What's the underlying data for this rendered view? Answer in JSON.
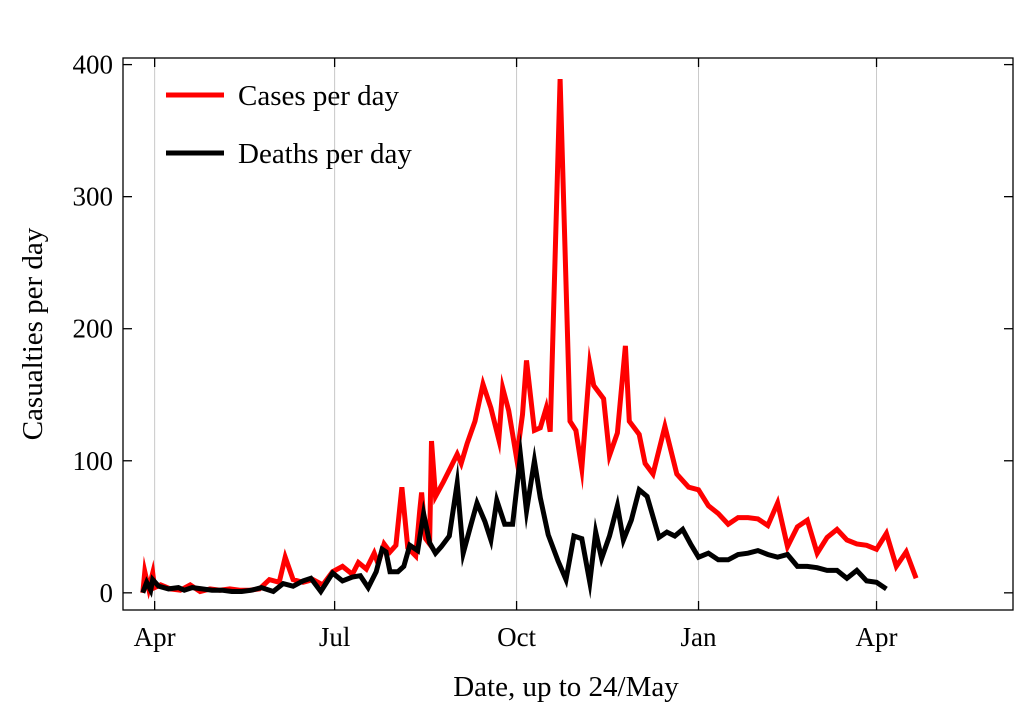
{
  "chart_data": {
    "type": "line",
    "title": "",
    "xlabel": "Date, up to 24/May",
    "ylabel": "Casualties per day",
    "x_ticks": [
      {
        "label": "Apr",
        "day": 1
      },
      {
        "label": "Jul",
        "day": 92
      },
      {
        "label": "Oct",
        "day": 184
      },
      {
        "label": "Jan",
        "day": 276
      },
      {
        "label": "Apr",
        "day": 366
      }
    ],
    "x_domain": [
      -15,
      435
    ],
    "y_ticks": [
      0,
      100,
      200,
      300,
      400
    ],
    "ylim": [
      -13,
      405
    ],
    "grid": "vertical",
    "legend_position": "top-left",
    "series": [
      {
        "name": "Cases per day",
        "color": "#ff0000",
        "points": [
          [
            -5,
            0
          ],
          [
            -4,
            16
          ],
          [
            -2,
            3
          ],
          [
            0,
            15
          ],
          [
            1,
            4
          ],
          [
            4,
            6
          ],
          [
            9,
            3
          ],
          [
            14,
            2
          ],
          [
            19,
            6
          ],
          [
            24,
            1
          ],
          [
            29,
            3
          ],
          [
            34,
            2
          ],
          [
            39,
            3
          ],
          [
            44,
            2
          ],
          [
            49,
            2
          ],
          [
            54,
            3
          ],
          [
            59,
            10
          ],
          [
            64,
            8
          ],
          [
            67,
            27
          ],
          [
            71,
            10
          ],
          [
            76,
            8
          ],
          [
            81,
            10
          ],
          [
            86,
            6
          ],
          [
            91,
            16
          ],
          [
            96,
            20
          ],
          [
            101,
            14
          ],
          [
            104,
            23
          ],
          [
            108,
            18
          ],
          [
            112,
            30
          ],
          [
            114,
            22
          ],
          [
            117,
            37
          ],
          [
            120,
            31
          ],
          [
            123,
            36
          ],
          [
            126,
            80
          ],
          [
            129,
            34
          ],
          [
            133,
            28
          ],
          [
            135,
            62
          ],
          [
            136,
            76
          ],
          [
            138,
            41
          ],
          [
            140,
            37
          ],
          [
            141,
            115
          ],
          [
            143,
            73
          ],
          [
            147,
            84
          ],
          [
            151,
            96
          ],
          [
            154,
            105
          ],
          [
            156,
            98
          ],
          [
            159,
            113
          ],
          [
            163,
            130
          ],
          [
            167,
            158
          ],
          [
            171,
            140
          ],
          [
            175,
            116
          ],
          [
            177,
            155
          ],
          [
            180,
            138
          ],
          [
            184,
            102
          ],
          [
            187,
            135
          ],
          [
            189,
            176
          ],
          [
            193,
            123
          ],
          [
            196,
            125
          ],
          [
            199,
            140
          ],
          [
            201,
            122
          ],
          [
            206,
            389
          ],
          [
            211,
            130
          ],
          [
            214,
            123
          ],
          [
            217,
            94
          ],
          [
            221,
            173
          ],
          [
            223,
            157
          ],
          [
            228,
            147
          ],
          [
            231,
            104
          ],
          [
            235,
            121
          ],
          [
            239,
            187
          ],
          [
            241,
            130
          ],
          [
            246,
            120
          ],
          [
            249,
            98
          ],
          [
            253,
            90
          ],
          [
            259,
            126
          ],
          [
            265,
            90
          ],
          [
            271,
            80
          ],
          [
            276,
            78
          ],
          [
            281,
            66
          ],
          [
            286,
            60
          ],
          [
            291,
            52
          ],
          [
            296,
            57
          ],
          [
            301,
            57
          ],
          [
            306,
            56
          ],
          [
            311,
            51
          ],
          [
            316,
            68
          ],
          [
            321,
            35
          ],
          [
            326,
            50
          ],
          [
            331,
            55
          ],
          [
            336,
            30
          ],
          [
            341,
            42
          ],
          [
            346,
            48
          ],
          [
            351,
            40
          ],
          [
            356,
            37
          ],
          [
            361,
            36
          ],
          [
            366,
            33
          ],
          [
            371,
            45
          ],
          [
            376,
            20
          ],
          [
            381,
            31
          ],
          [
            386,
            11
          ]
        ]
      },
      {
        "name": "Deaths per day",
        "color": "#000000",
        "points": [
          [
            -5,
            0
          ],
          [
            -3,
            8
          ],
          [
            -1,
            2
          ],
          [
            0,
            10
          ],
          [
            3,
            5
          ],
          [
            8,
            3
          ],
          [
            13,
            4
          ],
          [
            16,
            2
          ],
          [
            20,
            4
          ],
          [
            25,
            3
          ],
          [
            30,
            2
          ],
          [
            35,
            2
          ],
          [
            40,
            1
          ],
          [
            45,
            1
          ],
          [
            50,
            2
          ],
          [
            55,
            4
          ],
          [
            61,
            1
          ],
          [
            66,
            7
          ],
          [
            71,
            5
          ],
          [
            76,
            9
          ],
          [
            80,
            11
          ],
          [
            85,
            1
          ],
          [
            91,
            15
          ],
          [
            96,
            9
          ],
          [
            101,
            12
          ],
          [
            105,
            13
          ],
          [
            109,
            4
          ],
          [
            113,
            16
          ],
          [
            116,
            33
          ],
          [
            118,
            31
          ],
          [
            120,
            16
          ],
          [
            124,
            16
          ],
          [
            127,
            20
          ],
          [
            130,
            36
          ],
          [
            134,
            32
          ],
          [
            137,
            60
          ],
          [
            140,
            38
          ],
          [
            143,
            30
          ],
          [
            146,
            35
          ],
          [
            150,
            43
          ],
          [
            154,
            83
          ],
          [
            157,
            30
          ],
          [
            161,
            52
          ],
          [
            164,
            68
          ],
          [
            168,
            54
          ],
          [
            171,
            40
          ],
          [
            174,
            70
          ],
          [
            178,
            52
          ],
          [
            182,
            52
          ],
          [
            186,
            104
          ],
          [
            189,
            62
          ],
          [
            193,
            100
          ],
          [
            196,
            72
          ],
          [
            200,
            44
          ],
          [
            205,
            24
          ],
          [
            209,
            10
          ],
          [
            213,
            43
          ],
          [
            217,
            41
          ],
          [
            221,
            8
          ],
          [
            224,
            46
          ],
          [
            227,
            26
          ],
          [
            231,
            43
          ],
          [
            235,
            66
          ],
          [
            238,
            40
          ],
          [
            242,
            55
          ],
          [
            246,
            78
          ],
          [
            250,
            73
          ],
          [
            256,
            42
          ],
          [
            260,
            46
          ],
          [
            264,
            43
          ],
          [
            268,
            48
          ],
          [
            272,
            37
          ],
          [
            276,
            27
          ],
          [
            281,
            30
          ],
          [
            286,
            25
          ],
          [
            291,
            25
          ],
          [
            296,
            29
          ],
          [
            301,
            30
          ],
          [
            306,
            32
          ],
          [
            311,
            29
          ],
          [
            316,
            27
          ],
          [
            321,
            29
          ],
          [
            326,
            20
          ],
          [
            331,
            20
          ],
          [
            336,
            19
          ],
          [
            341,
            17
          ],
          [
            346,
            17
          ],
          [
            351,
            11
          ],
          [
            356,
            17
          ],
          [
            361,
            9
          ],
          [
            366,
            8
          ],
          [
            371,
            3
          ]
        ]
      }
    ]
  }
}
